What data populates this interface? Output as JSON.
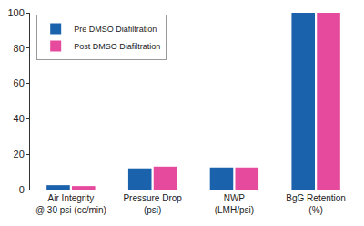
{
  "chart_data": {
    "type": "bar",
    "categories": [
      "Air Integrity\n@ 30 psi (cc/min)",
      "Pressure Drop\n(psi)",
      "NWP\n(LMH/psi)",
      "BgG Retention\n(%)"
    ],
    "series": [
      {
        "name": "Pre DMSO Diafiltration",
        "color": "#1b62ad",
        "values": [
          2.5,
          12,
          12.5,
          100
        ]
      },
      {
        "name": "Post DMSO Diafiltration",
        "color": "#e64a9c",
        "values": [
          2,
          13,
          12.5,
          100
        ]
      }
    ],
    "ylim": [
      0,
      100
    ],
    "yticks": [
      0,
      20,
      40,
      60,
      80,
      100
    ],
    "grid": false,
    "legend": "upper left"
  }
}
